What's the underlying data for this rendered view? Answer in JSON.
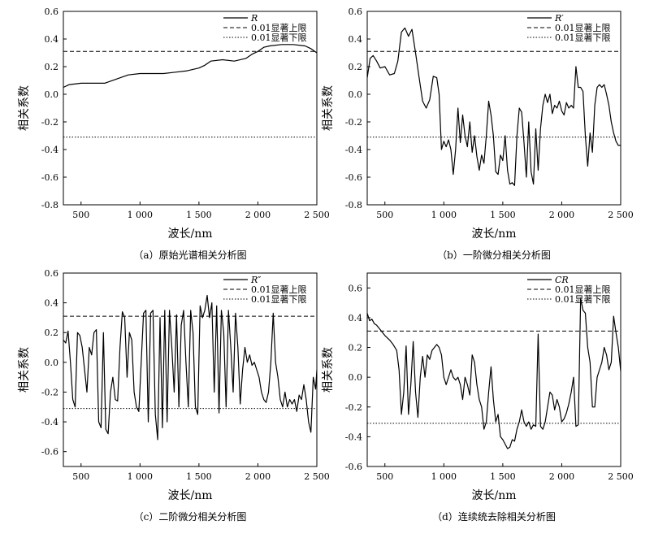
{
  "chart_data": [
    {
      "type": "line",
      "caption": "（a）原始光谱相关分析图",
      "xlabel": "波长/nm",
      "ylabel": "相关系数",
      "xlim": [
        350,
        2500
      ],
      "ylim": [
        -0.8,
        0.6
      ],
      "xticks": [
        500,
        1000,
        1500,
        2000,
        2500
      ],
      "xtick_labels": [
        "500",
        "1 000",
        "1 500",
        "2 000",
        "2 500"
      ],
      "yticks": [
        -0.8,
        -0.6,
        -0.4,
        -0.2,
        0.0,
        0.2,
        0.4,
        0.6
      ],
      "ytick_labels": [
        "-0.8",
        "-0.6",
        "-0.4",
        "-0.2",
        "0.0",
        "0.2",
        "0.4",
        "0.6"
      ],
      "legend_position": "top-right",
      "thresholds": [
        {
          "name": "0.01显著上限",
          "value": 0.31,
          "style": "dashed"
        },
        {
          "name": "0.01显著下限",
          "value": -0.31,
          "style": "dotted"
        }
      ],
      "series": [
        {
          "name": "R",
          "x": [
            350,
            400,
            500,
            600,
            700,
            800,
            900,
            1000,
            1100,
            1200,
            1300,
            1400,
            1500,
            1550,
            1600,
            1700,
            1800,
            1900,
            1950,
            2000,
            2050,
            2100,
            2200,
            2300,
            2400,
            2450,
            2500
          ],
          "y": [
            0.05,
            0.07,
            0.08,
            0.08,
            0.08,
            0.11,
            0.14,
            0.15,
            0.15,
            0.15,
            0.16,
            0.17,
            0.19,
            0.21,
            0.24,
            0.25,
            0.24,
            0.26,
            0.29,
            0.31,
            0.34,
            0.35,
            0.36,
            0.36,
            0.35,
            0.33,
            0.3
          ]
        }
      ]
    },
    {
      "type": "line",
      "caption": "（b）一阶微分相关分析图",
      "xlabel": "波长/nm",
      "ylabel": "相关系数",
      "xlim": [
        350,
        2500
      ],
      "ylim": [
        -0.8,
        0.6
      ],
      "xticks": [
        500,
        1000,
        1500,
        2000,
        2500
      ],
      "xtick_labels": [
        "500",
        "1 000",
        "1 500",
        "2 000",
        "2 500"
      ],
      "yticks": [
        -0.8,
        -0.6,
        -0.4,
        -0.2,
        0.0,
        0.2,
        0.4,
        0.6
      ],
      "ytick_labels": [
        "-0.8",
        "-0.6",
        "-0.4",
        "-0.2",
        "0.0",
        "0.2",
        "0.4",
        "0.6"
      ],
      "legend_position": "top-right",
      "thresholds": [
        {
          "name": "0.01显著上限",
          "value": 0.31,
          "style": "dashed"
        },
        {
          "name": "0.01显著下限",
          "value": -0.31,
          "style": "dotted"
        }
      ],
      "series": [
        {
          "name": "R′",
          "x": [
            350,
            375,
            400,
            430,
            460,
            500,
            540,
            580,
            610,
            640,
            670,
            700,
            730,
            760,
            790,
            820,
            850,
            880,
            910,
            940,
            960,
            980,
            1000,
            1020,
            1040,
            1060,
            1080,
            1100,
            1120,
            1140,
            1160,
            1180,
            1200,
            1220,
            1240,
            1260,
            1280,
            1300,
            1320,
            1340,
            1360,
            1380,
            1400,
            1420,
            1440,
            1460,
            1480,
            1500,
            1520,
            1540,
            1560,
            1580,
            1600,
            1620,
            1640,
            1660,
            1680,
            1700,
            1720,
            1740,
            1760,
            1780,
            1800,
            1820,
            1840,
            1860,
            1880,
            1900,
            1920,
            1940,
            1960,
            1980,
            2000,
            2020,
            2040,
            2060,
            2080,
            2100,
            2120,
            2140,
            2160,
            2180,
            2200,
            2220,
            2240,
            2260,
            2280,
            2300,
            2320,
            2340,
            2360,
            2380,
            2400,
            2420,
            2440,
            2460,
            2480,
            2500
          ],
          "y": [
            0.12,
            0.26,
            0.28,
            0.24,
            0.19,
            0.2,
            0.14,
            0.15,
            0.24,
            0.45,
            0.48,
            0.42,
            0.47,
            0.3,
            0.12,
            -0.05,
            -0.1,
            -0.04,
            0.13,
            0.12,
            0.0,
            -0.4,
            -0.34,
            -0.38,
            -0.33,
            -0.4,
            -0.58,
            -0.4,
            -0.1,
            -0.35,
            -0.15,
            -0.3,
            -0.38,
            -0.2,
            -0.42,
            -0.3,
            -0.45,
            -0.55,
            -0.44,
            -0.5,
            -0.3,
            -0.05,
            -0.15,
            -0.3,
            -0.56,
            -0.58,
            -0.44,
            -0.48,
            -0.3,
            -0.55,
            -0.65,
            -0.64,
            -0.66,
            -0.3,
            -0.1,
            -0.13,
            -0.35,
            -0.6,
            -0.2,
            -0.56,
            -0.65,
            -0.25,
            -0.55,
            -0.25,
            -0.08,
            0.0,
            -0.06,
            0.0,
            -0.14,
            -0.08,
            -0.1,
            -0.05,
            -0.12,
            -0.15,
            -0.06,
            -0.1,
            -0.08,
            -0.1,
            0.2,
            0.05,
            0.05,
            0.02,
            -0.3,
            -0.52,
            -0.28,
            -0.42,
            -0.08,
            0.05,
            0.07,
            0.05,
            0.07,
            0.0,
            -0.08,
            -0.2,
            -0.28,
            -0.34,
            -0.37,
            -0.37
          ]
        }
      ]
    },
    {
      "type": "line",
      "caption": "（c）二阶微分相关分析图",
      "xlabel": "波长/nm",
      "ylabel": "相关系数",
      "xlim": [
        350,
        2500
      ],
      "ylim": [
        -0.7,
        0.6
      ],
      "xticks": [
        500,
        1000,
        1500,
        2000,
        2500
      ],
      "xtick_labels": [
        "500",
        "1 000",
        "1 500",
        "2 000",
        "2 500"
      ],
      "yticks": [
        -0.6,
        -0.4,
        -0.2,
        0.0,
        0.2,
        0.4,
        0.6
      ],
      "ytick_labels": [
        "-0.6",
        "-0.4",
        "-0.2",
        "0.0",
        "0.2",
        "0.4",
        "0.6"
      ],
      "legend_position": "top-right",
      "thresholds": [
        {
          "name": "0.01显著上限",
          "value": 0.31,
          "style": "dashed"
        },
        {
          "name": "0.01显著下限",
          "value": -0.31,
          "style": "dotted"
        }
      ],
      "series": [
        {
          "name": "R″",
          "x": [
            350,
            370,
            390,
            410,
            430,
            450,
            470,
            490,
            510,
            530,
            550,
            570,
            590,
            610,
            630,
            650,
            670,
            690,
            710,
            730,
            750,
            770,
            790,
            810,
            830,
            850,
            870,
            890,
            910,
            930,
            950,
            970,
            990,
            1010,
            1030,
            1050,
            1070,
            1090,
            1110,
            1130,
            1150,
            1170,
            1190,
            1210,
            1230,
            1250,
            1270,
            1290,
            1310,
            1330,
            1350,
            1370,
            1390,
            1410,
            1430,
            1450,
            1470,
            1490,
            1510,
            1530,
            1550,
            1570,
            1590,
            1610,
            1630,
            1650,
            1670,
            1690,
            1710,
            1730,
            1750,
            1770,
            1790,
            1810,
            1830,
            1850,
            1870,
            1890,
            1910,
            1930,
            1950,
            1970,
            1990,
            2010,
            2030,
            2050,
            2070,
            2090,
            2110,
            2130,
            2150,
            2170,
            2190,
            2210,
            2230,
            2250,
            2270,
            2290,
            2310,
            2330,
            2350,
            2370,
            2390,
            2410,
            2430,
            2450,
            2470,
            2490,
            2500
          ],
          "y": [
            0.15,
            0.13,
            0.21,
            0.0,
            -0.25,
            -0.3,
            0.2,
            0.18,
            0.1,
            -0.05,
            -0.2,
            0.1,
            0.05,
            0.2,
            0.22,
            -0.4,
            -0.44,
            0.2,
            -0.45,
            -0.48,
            -0.2,
            -0.1,
            -0.25,
            -0.26,
            0.1,
            0.34,
            0.3,
            -0.1,
            0.2,
            0.15,
            -0.2,
            -0.3,
            -0.33,
            0.0,
            0.33,
            0.35,
            -0.4,
            0.33,
            0.35,
            -0.35,
            -0.52,
            0.3,
            -0.44,
            0.35,
            -0.4,
            0.35,
            0.1,
            -0.2,
            0.32,
            -0.3,
            0.25,
            0.35,
            0.0,
            -0.3,
            0.35,
            0.2,
            -0.3,
            -0.35,
            0.38,
            0.3,
            0.35,
            0.45,
            0.3,
            0.4,
            -0.2,
            0.38,
            -0.34,
            0.35,
            0.2,
            -0.3,
            0.35,
            0.1,
            -0.2,
            0.33,
            0.1,
            -0.28,
            -0.05,
            0.1,
            0.0,
            0.05,
            -0.02,
            0.0,
            -0.05,
            -0.1,
            -0.2,
            -0.25,
            -0.27,
            -0.2,
            0.0,
            0.33,
            0.0,
            -0.1,
            -0.25,
            -0.3,
            -0.2,
            -0.3,
            -0.25,
            -0.28,
            -0.25,
            -0.33,
            -0.22,
            -0.25,
            -0.15,
            -0.25,
            -0.4,
            -0.47,
            -0.1,
            -0.18,
            -0.05
          ]
        }
      ]
    },
    {
      "type": "line",
      "caption": "（d）连续统去除相关分析图",
      "xlabel": "波长/nm",
      "ylabel": "相关系数",
      "xlim": [
        350,
        2500
      ],
      "ylim": [
        -0.6,
        0.7
      ],
      "xticks": [
        500,
        1000,
        1500,
        2000,
        2500
      ],
      "xtick_labels": [
        "500",
        "1 000",
        "1 500",
        "2 000",
        "2 500"
      ],
      "yticks": [
        -0.6,
        -0.4,
        -0.2,
        0.0,
        0.2,
        0.4,
        0.6
      ],
      "ytick_labels": [
        "-0.6",
        "-0.4",
        "-0.2",
        "0.0",
        "0.2",
        "0.4",
        "0.6"
      ],
      "legend_position": "top-right",
      "thresholds": [
        {
          "name": "0.01显著上限",
          "value": 0.31,
          "style": "dashed"
        },
        {
          "name": "0.01显著下限",
          "value": -0.31,
          "style": "dotted"
        }
      ],
      "series": [
        {
          "name": "CR",
          "x": [
            350,
            370,
            390,
            410,
            430,
            460,
            500,
            540,
            570,
            600,
            620,
            640,
            660,
            680,
            700,
            720,
            740,
            760,
            780,
            800,
            820,
            840,
            860,
            880,
            900,
            920,
            940,
            960,
            980,
            1000,
            1020,
            1040,
            1060,
            1080,
            1100,
            1120,
            1140,
            1160,
            1180,
            1200,
            1220,
            1240,
            1260,
            1280,
            1300,
            1320,
            1340,
            1360,
            1380,
            1400,
            1420,
            1440,
            1460,
            1480,
            1500,
            1520,
            1540,
            1560,
            1580,
            1600,
            1620,
            1640,
            1660,
            1680,
            1700,
            1720,
            1740,
            1760,
            1780,
            1800,
            1820,
            1840,
            1860,
            1880,
            1900,
            1920,
            1940,
            1960,
            1980,
            2000,
            2020,
            2040,
            2060,
            2080,
            2100,
            2120,
            2140,
            2160,
            2180,
            2200,
            2220,
            2240,
            2260,
            2280,
            2300,
            2320,
            2340,
            2360,
            2380,
            2400,
            2420,
            2440,
            2460,
            2480,
            2500
          ],
          "y": [
            0.43,
            0.38,
            0.39,
            0.36,
            0.35,
            0.32,
            0.28,
            0.25,
            0.22,
            0.18,
            0.05,
            -0.25,
            -0.1,
            0.21,
            -0.25,
            -0.05,
            0.24,
            -0.1,
            -0.27,
            0.0,
            0.14,
            0.0,
            0.15,
            0.12,
            0.18,
            0.2,
            0.22,
            0.2,
            0.15,
            0.0,
            -0.05,
            0.0,
            0.05,
            0.0,
            -0.02,
            0.0,
            -0.05,
            -0.15,
            0.0,
            -0.05,
            -0.12,
            0.15,
            0.1,
            -0.05,
            -0.15,
            -0.2,
            -0.35,
            -0.3,
            -0.1,
            0.07,
            -0.15,
            -0.3,
            -0.25,
            -0.4,
            -0.42,
            -0.45,
            -0.48,
            -0.47,
            -0.42,
            -0.43,
            -0.35,
            -0.3,
            -0.22,
            -0.3,
            -0.33,
            -0.3,
            -0.35,
            -0.32,
            -0.33,
            0.29,
            -0.33,
            -0.35,
            -0.3,
            -0.2,
            -0.1,
            -0.12,
            -0.22,
            -0.15,
            -0.2,
            -0.3,
            -0.28,
            -0.24,
            -0.18,
            -0.1,
            0.0,
            -0.33,
            -0.32,
            0.53,
            0.45,
            0.43,
            0.2,
            0.1,
            -0.2,
            -0.2,
            0.0,
            0.05,
            0.1,
            0.2,
            0.15,
            0.05,
            0.1,
            0.41,
            0.3,
            0.2,
            0.04
          ]
        }
      ]
    }
  ]
}
